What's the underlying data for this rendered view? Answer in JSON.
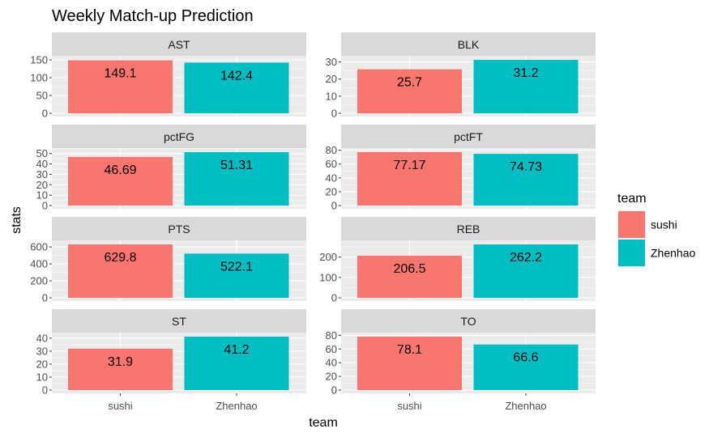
{
  "chart_data": {
    "type": "bar",
    "title": "Weekly Match-up Prediction",
    "xlabel": "team",
    "ylabel": "stats",
    "categories": [
      "sushi",
      "Zhenhao"
    ],
    "colors": {
      "sushi": "#F8766D",
      "Zhenhao": "#00BFC4"
    },
    "legend": {
      "title": "team",
      "position": "right",
      "entries": [
        "sushi",
        "Zhenhao"
      ]
    },
    "facets": [
      {
        "name": "AST",
        "values": [
          149.1,
          142.4
        ],
        "labels": [
          "149.1",
          "142.4"
        ],
        "ylim": [
          0,
          150
        ],
        "yticks": [
          0,
          50,
          100,
          150
        ]
      },
      {
        "name": "BLK",
        "values": [
          25.7,
          31.2
        ],
        "labels": [
          "25.7",
          "31.2"
        ],
        "ylim": [
          0,
          31.2
        ],
        "yticks": [
          0,
          10,
          20,
          30
        ]
      },
      {
        "name": "pctFG",
        "values": [
          46.69,
          51.31
        ],
        "labels": [
          "46.69",
          "51.31"
        ],
        "ylim": [
          0,
          51.31
        ],
        "yticks": [
          0,
          10,
          20,
          30,
          40,
          50
        ]
      },
      {
        "name": "pctFT",
        "values": [
          77.17,
          74.73
        ],
        "labels": [
          "77.17",
          "74.73"
        ],
        "ylim": [
          0,
          77.17
        ],
        "yticks": [
          0,
          20,
          40,
          60,
          80
        ]
      },
      {
        "name": "PTS",
        "values": [
          629.8,
          522.1
        ],
        "labels": [
          "629.8",
          "522.1"
        ],
        "ylim": [
          0,
          629.8
        ],
        "yticks": [
          0,
          200,
          400,
          600
        ]
      },
      {
        "name": "REB",
        "values": [
          206.5,
          262.2
        ],
        "labels": [
          "206.5",
          "262.2"
        ],
        "ylim": [
          0,
          262.2
        ],
        "yticks": [
          0,
          100,
          200
        ]
      },
      {
        "name": "ST",
        "values": [
          31.9,
          41.2
        ],
        "labels": [
          "31.9",
          "41.2"
        ],
        "ylim": [
          0,
          41.2
        ],
        "yticks": [
          0,
          10,
          20,
          30,
          40
        ]
      },
      {
        "name": "TO",
        "values": [
          78.1,
          66.6
        ],
        "labels": [
          "78.1",
          "66.6"
        ],
        "ylim": [
          0,
          78.1
        ],
        "yticks": [
          0,
          20,
          40,
          60,
          80
        ]
      }
    ]
  }
}
